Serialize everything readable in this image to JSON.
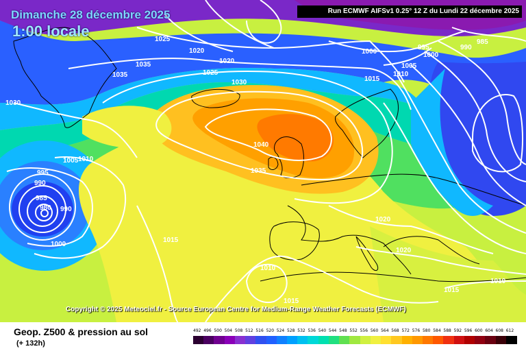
{
  "map": {
    "date_title": "Dimanche 28 décembre 2025",
    "time_label": "1:00 locale",
    "run_info": "Run ECMWF AIFSv1 0.25° 12 Z du Lundi 22 décembre 2025",
    "copyright": "Copyright © 2025 Meteociel.fr - Source European Centre for Medium-Range Weather Forecasts (ECMWF)",
    "isobar_labels": [
      "1025",
      "1020",
      "1020",
      "1035",
      "1025",
      "1030",
      "1035",
      "1030",
      "1040",
      "1035",
      "1005",
      "1010",
      "995",
      "990",
      "985",
      "980",
      "990",
      "1000",
      "1015",
      "1010",
      "1015",
      "1000",
      "995",
      "990",
      "985",
      "1000",
      "1005",
      "1010",
      "1015",
      "1020",
      "1020",
      "1015",
      "1010"
    ]
  },
  "footer": {
    "chart_title": "Geop. Z500 & pression au sol",
    "forecast_hour": "(+ 132h)",
    "legend_labels": [
      "492",
      "496",
      "500",
      "504",
      "508",
      "512",
      "516",
      "520",
      "524",
      "528",
      "532",
      "536",
      "540",
      "544",
      "548",
      "552",
      "556",
      "560",
      "564",
      "568",
      "572",
      "576",
      "580",
      "584",
      "588",
      "592",
      "596",
      "600",
      "604",
      "608",
      "612"
    ],
    "legend_colors": [
      "#2b0030",
      "#4a0060",
      "#700090",
      "#8a00b8",
      "#8830d0",
      "#6040e0",
      "#3050f0",
      "#2060ff",
      "#1080ff",
      "#00a0ff",
      "#00c0f0",
      "#00d8d8",
      "#00e0b0",
      "#20e080",
      "#60e050",
      "#a0e840",
      "#d0f040",
      "#f0f040",
      "#ffe030",
      "#ffc820",
      "#ffb000",
      "#ff9800",
      "#ff7800",
      "#ff5800",
      "#f03010",
      "#d01010",
      "#b00000",
      "#900010",
      "#6a0010",
      "#3a0008",
      "#000000"
    ]
  }
}
